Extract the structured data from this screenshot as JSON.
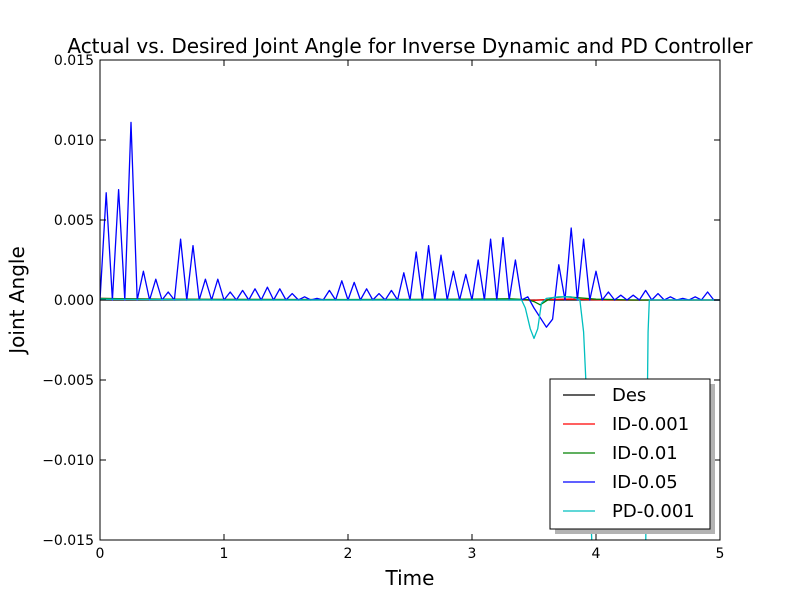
{
  "chart_data": {
    "type": "line",
    "title": "Actual vs. Desired Joint Angle for Inverse Dynamic and PD Controller",
    "xlabel": "Time",
    "ylabel": "Joint Angle",
    "xlim": [
      0,
      5
    ],
    "ylim": [
      -0.015,
      0.015
    ],
    "x_ticks": [
      0,
      1,
      2,
      3,
      4,
      5
    ],
    "x_tick_labels": [
      "0",
      "1",
      "2",
      "3",
      "4",
      "5"
    ],
    "y_ticks": [
      -0.015,
      -0.01,
      -0.005,
      0.0,
      0.005,
      0.01,
      0.015
    ],
    "y_tick_labels": [
      "−0.015",
      "−0.010",
      "−0.005",
      "0.000",
      "0.005",
      "0.010",
      "0.015"
    ],
    "grid": false,
    "legend_position": "lower-right",
    "series": [
      {
        "name": "Des",
        "color": "#000000",
        "points": [
          [
            0,
            0
          ],
          [
            5,
            0
          ]
        ]
      },
      {
        "name": "ID-0.001",
        "color": "#ff0000",
        "points": [
          [
            0,
            0.0001
          ],
          [
            0.5,
            5e-05
          ],
          [
            1,
            3e-05
          ],
          [
            2,
            2e-05
          ],
          [
            3,
            3e-05
          ],
          [
            3.4,
            2e-05
          ],
          [
            3.5,
            -2e-05
          ],
          [
            3.6,
            3e-05
          ],
          [
            3.8,
            6e-05
          ],
          [
            3.95,
            2e-05
          ],
          [
            4.2,
            -1e-05
          ],
          [
            5,
            0
          ]
        ]
      },
      {
        "name": "ID-0.01",
        "color": "#008000",
        "points": [
          [
            0,
            0.0001
          ],
          [
            0.2,
            8e-05
          ],
          [
            0.5,
            5e-05
          ],
          [
            1,
            4e-05
          ],
          [
            1.5,
            3e-05
          ],
          [
            2,
            3e-05
          ],
          [
            2.5,
            4e-05
          ],
          [
            3,
            5e-05
          ],
          [
            3.3,
            8e-05
          ],
          [
            3.45,
            2e-05
          ],
          [
            3.5,
            -0.0001
          ],
          [
            3.55,
            -0.0003
          ],
          [
            3.6,
            -5e-05
          ],
          [
            3.65,
            0.00015
          ],
          [
            3.75,
            0.0002
          ],
          [
            3.85,
            0.00015
          ],
          [
            4.0,
            5e-05
          ],
          [
            4.3,
            0.0
          ],
          [
            5,
            0
          ]
        ]
      },
      {
        "name": "ID-0.05",
        "color": "#0000ff",
        "points": [
          [
            0,
            0.0
          ],
          [
            0.05,
            0.0067
          ],
          [
            0.1,
            0.0
          ],
          [
            0.15,
            0.0069
          ],
          [
            0.2,
            0.0
          ],
          [
            0.25,
            0.0111
          ],
          [
            0.3,
            0.0
          ],
          [
            0.35,
            0.0018
          ],
          [
            0.4,
            0.0
          ],
          [
            0.45,
            0.0013
          ],
          [
            0.5,
            0.0
          ],
          [
            0.55,
            0.0005
          ],
          [
            0.6,
            0.0
          ],
          [
            0.65,
            0.0038
          ],
          [
            0.7,
            0.0
          ],
          [
            0.75,
            0.0034
          ],
          [
            0.8,
            0.0
          ],
          [
            0.85,
            0.0013
          ],
          [
            0.9,
            0.0
          ],
          [
            0.95,
            0.0013
          ],
          [
            1.0,
            0.0
          ],
          [
            1.05,
            0.0005
          ],
          [
            1.1,
            0.0
          ],
          [
            1.15,
            0.0006
          ],
          [
            1.2,
            0.0
          ],
          [
            1.25,
            0.0007
          ],
          [
            1.3,
            0.0
          ],
          [
            1.35,
            0.0008
          ],
          [
            1.4,
            0.0
          ],
          [
            1.45,
            0.0007
          ],
          [
            1.5,
            0.0
          ],
          [
            1.55,
            0.0004
          ],
          [
            1.6,
            0.0
          ],
          [
            1.65,
            0.0002
          ],
          [
            1.7,
            0.0
          ],
          [
            1.75,
            0.0001
          ],
          [
            1.8,
            0.0
          ],
          [
            1.85,
            0.0006
          ],
          [
            1.9,
            0.0
          ],
          [
            1.95,
            0.0012
          ],
          [
            2.0,
            0.0
          ],
          [
            2.05,
            0.0011
          ],
          [
            2.1,
            0.0
          ],
          [
            2.15,
            0.0007
          ],
          [
            2.2,
            0.0
          ],
          [
            2.25,
            0.0004
          ],
          [
            2.3,
            0.0
          ],
          [
            2.35,
            0.0006
          ],
          [
            2.4,
            0.0
          ],
          [
            2.45,
            0.0017
          ],
          [
            2.5,
            0.0
          ],
          [
            2.55,
            0.003
          ],
          [
            2.6,
            0.0
          ],
          [
            2.65,
            0.0034
          ],
          [
            2.7,
            0.0
          ],
          [
            2.75,
            0.0028
          ],
          [
            2.8,
            0.0
          ],
          [
            2.85,
            0.0018
          ],
          [
            2.9,
            0.0
          ],
          [
            2.95,
            0.0016
          ],
          [
            3.0,
            0.0
          ],
          [
            3.05,
            0.0025
          ],
          [
            3.1,
            0.0
          ],
          [
            3.15,
            0.0038
          ],
          [
            3.2,
            0.0
          ],
          [
            3.25,
            0.0039
          ],
          [
            3.3,
            0.0
          ],
          [
            3.35,
            0.0025
          ],
          [
            3.4,
            0.0
          ],
          [
            3.45,
            0.0002
          ],
          [
            3.5,
            -0.0005
          ],
          [
            3.6,
            -0.0017
          ],
          [
            3.65,
            -0.0012
          ],
          [
            3.7,
            0.0022
          ],
          [
            3.75,
            0.0
          ],
          [
            3.8,
            0.0045
          ],
          [
            3.85,
            0.0
          ],
          [
            3.9,
            0.0038
          ],
          [
            3.95,
            0.0
          ],
          [
            4.0,
            0.0018
          ],
          [
            4.05,
            0.0
          ],
          [
            4.1,
            0.0005
          ],
          [
            4.15,
            0.0
          ],
          [
            4.2,
            0.0003
          ],
          [
            4.25,
            0.0
          ],
          [
            4.3,
            0.0003
          ],
          [
            4.35,
            0.0
          ],
          [
            4.4,
            0.0006
          ],
          [
            4.45,
            0.0
          ],
          [
            4.5,
            0.0004
          ],
          [
            4.55,
            0.0
          ],
          [
            4.6,
            0.0002
          ],
          [
            4.65,
            0.0
          ],
          [
            4.7,
            0.0001
          ],
          [
            4.75,
            0.0
          ],
          [
            4.8,
            0.0002
          ],
          [
            4.85,
            0.0
          ],
          [
            4.9,
            0.0005
          ],
          [
            4.95,
            0.0
          ],
          [
            5.0,
            0.0
          ]
        ]
      },
      {
        "name": "PD-0.001",
        "color": "#00bfbf",
        "points": [
          [
            0,
            5e-05
          ],
          [
            1,
            0.0
          ],
          [
            2,
            0.0
          ],
          [
            3,
            0.0
          ],
          [
            3.4,
            0.0
          ],
          [
            3.43,
            -0.0005
          ],
          [
            3.47,
            -0.0018
          ],
          [
            3.5,
            -0.0024
          ],
          [
            3.53,
            -0.0018
          ],
          [
            3.56,
            -0.0002
          ],
          [
            3.6,
            0.0001
          ],
          [
            3.7,
            0.0002
          ],
          [
            3.8,
            0.0002
          ],
          [
            3.87,
            0.0
          ],
          [
            3.9,
            -0.002
          ],
          [
            3.93,
            -0.007
          ],
          [
            3.95,
            -0.0115
          ],
          [
            3.97,
            -0.016
          ],
          [
            4.4,
            -0.016
          ],
          [
            4.41,
            -0.009
          ],
          [
            4.42,
            -0.002
          ],
          [
            4.43,
            0.0
          ],
          [
            5,
            0.0
          ]
        ]
      }
    ]
  }
}
